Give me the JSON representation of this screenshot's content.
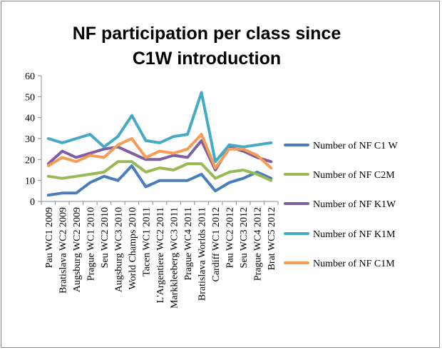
{
  "chart_data": {
    "type": "line",
    "title_lines": [
      "NF participation per class since",
      "C1W introduction"
    ],
    "xlabel": "",
    "ylabel": "",
    "ylim": [
      0,
      60
    ],
    "yticks": [
      "0",
      "10",
      "20",
      "30",
      "40",
      "50",
      "60"
    ],
    "grid": false,
    "legend_position": "right",
    "categories": [
      "Pau WC1 2009",
      "Bratislava WC2 2009",
      "Augsburg WC2 2009",
      "Prague WC1 2010",
      "Seu WC2 2010",
      "Augsburg WC3 2010",
      "World Champs 2010",
      "Tacen WC1 2011",
      "L'Argentiere WC2 2011",
      "Markkleeberg WC3 2011",
      "Prague WC4 2011",
      "Bratislava Worlds 2011",
      "Cardiff WC1 2012",
      "Pau WC2 2012",
      "Seu WC3 2012",
      "Prague WC4 2012",
      "Brat WC5 2012"
    ],
    "series": [
      {
        "name": "Number of  NF C1 W",
        "color": "#4a7ebb",
        "values": [
          3,
          4,
          4,
          9,
          12,
          10,
          17,
          7,
          10,
          10,
          10,
          13,
          5,
          9,
          11,
          14,
          11
        ]
      },
      {
        "name": "Number of  NF C2M",
        "color": "#98b954",
        "values": [
          12,
          11,
          12,
          13,
          14,
          19,
          19,
          14,
          16,
          15,
          18,
          18,
          11,
          14,
          15,
          13,
          10
        ]
      },
      {
        "name": "Number of  NF K1W",
        "color": "#7d60a0",
        "values": [
          18,
          24,
          21,
          23,
          25,
          26,
          23,
          20,
          20,
          22,
          21,
          29,
          15,
          26,
          24,
          21,
          19
        ]
      },
      {
        "name": "Number of  NF K1M",
        "color": "#46aac5",
        "values": [
          30,
          28,
          30,
          32,
          26,
          31,
          41,
          29,
          28,
          31,
          32,
          52,
          19,
          27,
          26,
          27,
          28
        ]
      },
      {
        "name": "Number of  NF C1M",
        "color": "#f59d56",
        "values": [
          17,
          21,
          19,
          22,
          21,
          27,
          30,
          21,
          24,
          23,
          25,
          32,
          16,
          25,
          25,
          22,
          16
        ]
      }
    ]
  }
}
